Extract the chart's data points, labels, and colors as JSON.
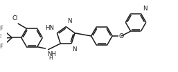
{
  "bg_color": "#ffffff",
  "bond_color": "#1a1a1a",
  "text_color": "#1a1a1a",
  "line_width": 1.1,
  "font_size": 6.2,
  "fig_width": 2.57,
  "fig_height": 1.04,
  "dpi": 100,
  "xlim": [
    0,
    10.0
  ],
  "ylim": [
    0,
    4.1
  ]
}
